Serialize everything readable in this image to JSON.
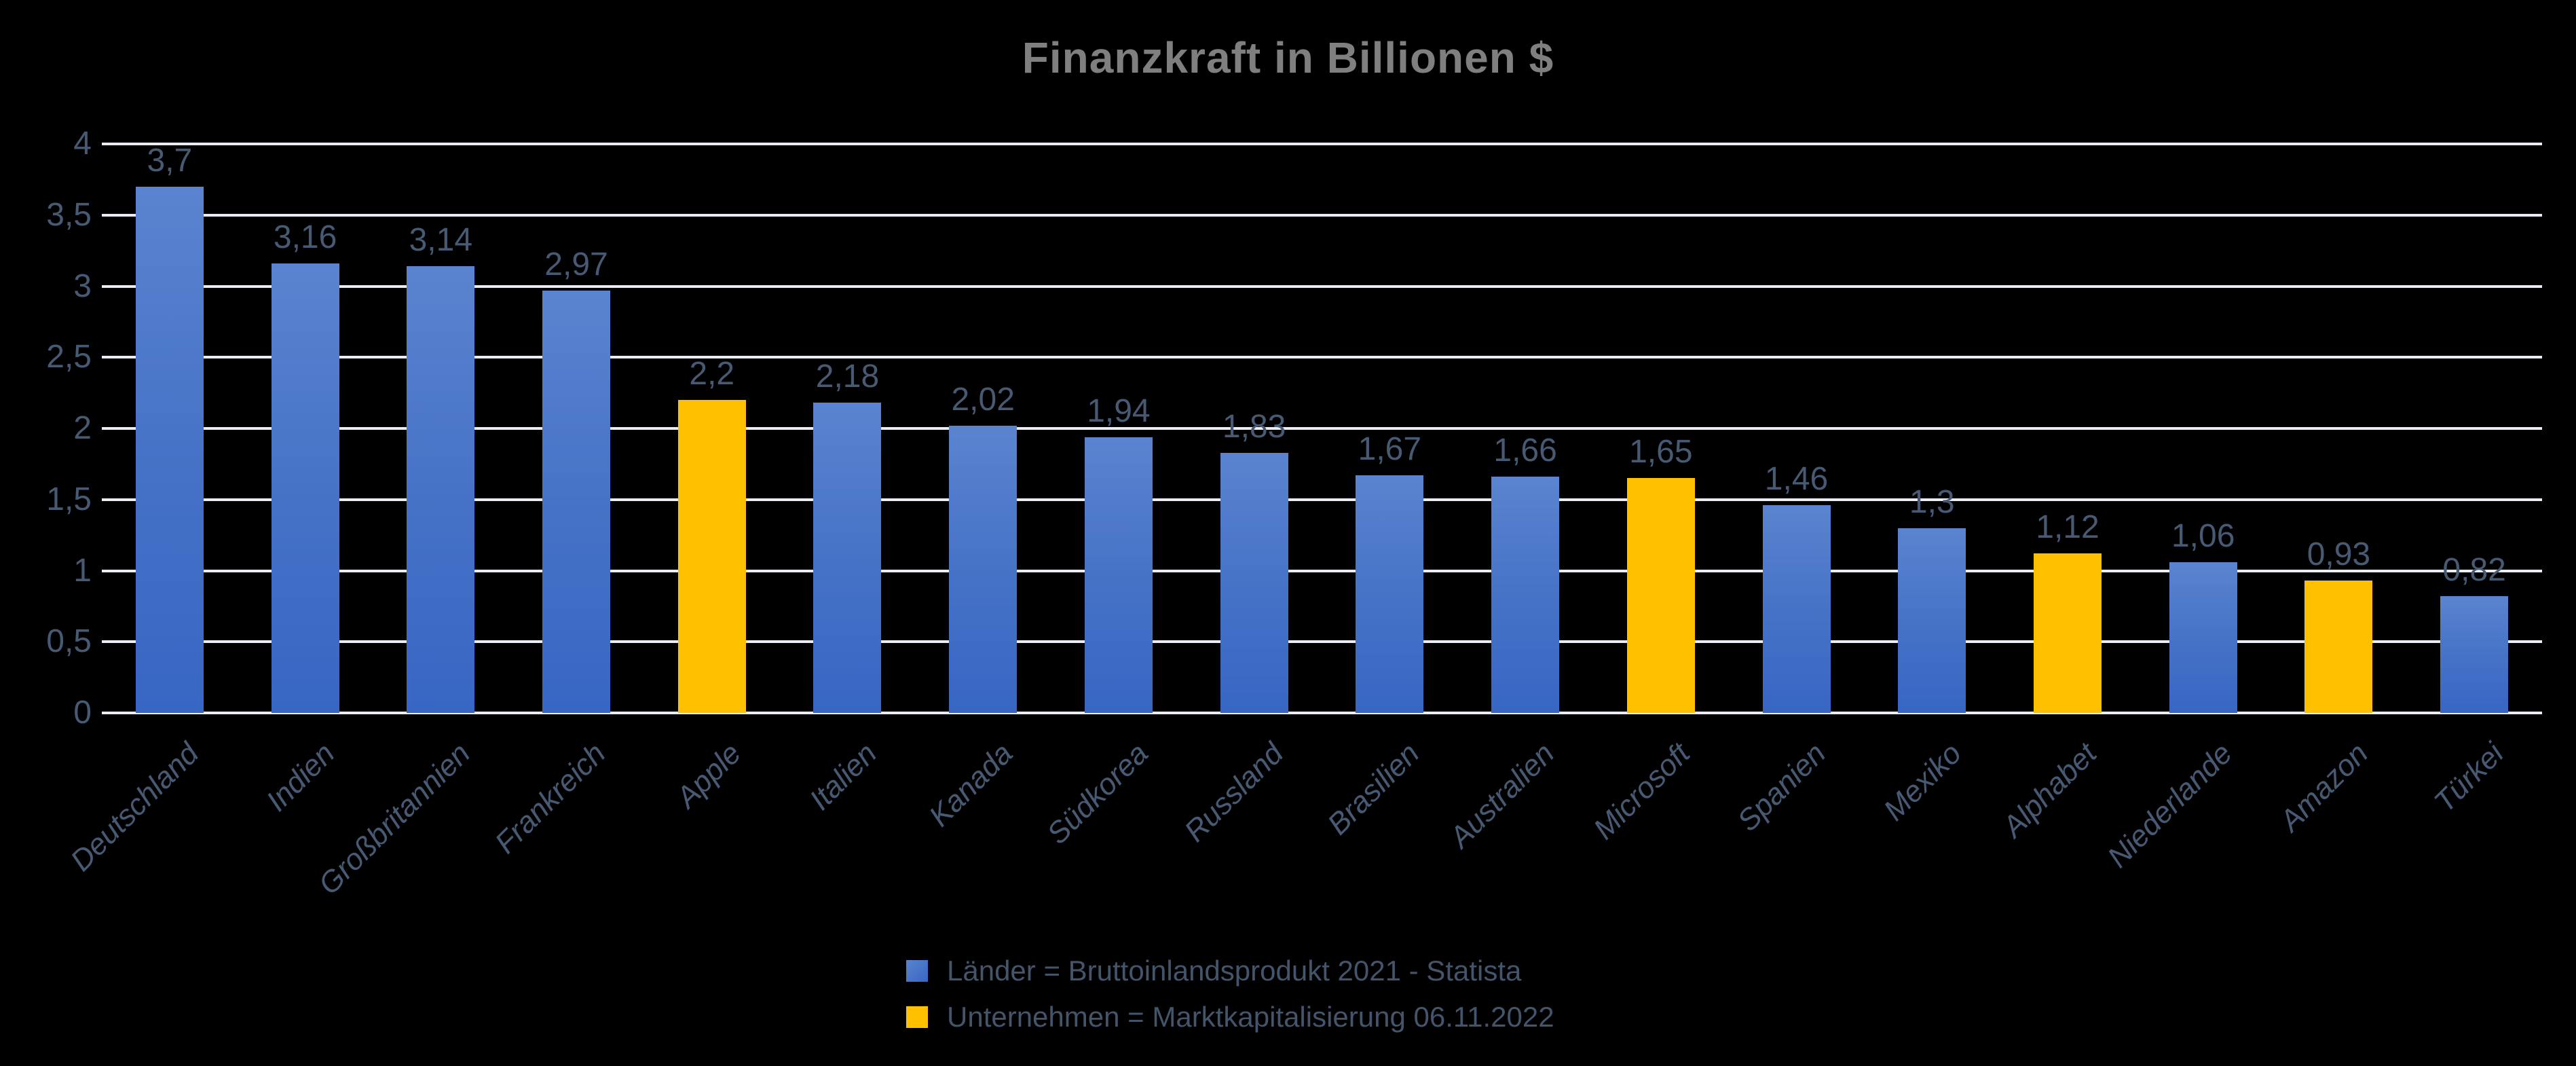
{
  "title": "Finanzkraft in Billionen $",
  "colors": {
    "background": "#000000",
    "title_text": "#7F7F7F",
    "axis_text": "#485A73",
    "legend_text": "#44546A",
    "gridline": "#E9EDF3",
    "country_bar_top": "#5A84CF",
    "country_bar_bottom": "#3766C4",
    "company_bar": "#FFC000"
  },
  "chart_data": {
    "type": "bar",
    "title": "Finanzkraft in Billionen $",
    "xlabel": "",
    "ylabel": "",
    "ylim": [
      0,
      4
    ],
    "ytick_step": 0.5,
    "grid": true,
    "legend_position": "bottom",
    "decimal_separator": ",",
    "yticks": [
      "0",
      "0,5",
      "1",
      "1,5",
      "2",
      "2,5",
      "3",
      "3,5",
      "4"
    ],
    "items": [
      {
        "label": "Deutschland",
        "value": 3.7,
        "display": "3,7",
        "series": "country"
      },
      {
        "label": "Indien",
        "value": 3.16,
        "display": "3,16",
        "series": "country"
      },
      {
        "label": "Großbritannien",
        "value": 3.14,
        "display": "3,14",
        "series": "country"
      },
      {
        "label": "Frankreich",
        "value": 2.97,
        "display": "2,97",
        "series": "country"
      },
      {
        "label": "Apple",
        "value": 2.2,
        "display": "2,2",
        "series": "company"
      },
      {
        "label": "Italien",
        "value": 2.18,
        "display": "2,18",
        "series": "country"
      },
      {
        "label": "Kanada",
        "value": 2.02,
        "display": "2,02",
        "series": "country"
      },
      {
        "label": "Südkorea",
        "value": 1.94,
        "display": "1,94",
        "series": "country"
      },
      {
        "label": "Russland",
        "value": 1.83,
        "display": "1,83",
        "series": "country"
      },
      {
        "label": "Brasilien",
        "value": 1.67,
        "display": "1,67",
        "series": "country"
      },
      {
        "label": "Australien",
        "value": 1.66,
        "display": "1,66",
        "series": "country"
      },
      {
        "label": "Microsoft",
        "value": 1.65,
        "display": "1,65",
        "series": "company"
      },
      {
        "label": "Spanien",
        "value": 1.46,
        "display": "1,46",
        "series": "country"
      },
      {
        "label": "Mexiko",
        "value": 1.3,
        "display": "1,3",
        "series": "country"
      },
      {
        "label": "Alphabet",
        "value": 1.12,
        "display": "1,12",
        "series": "company"
      },
      {
        "label": "Niederlande",
        "value": 1.06,
        "display": "1,06",
        "series": "country"
      },
      {
        "label": "Amazon",
        "value": 0.93,
        "display": "0,93",
        "series": "company"
      },
      {
        "label": "Türkei",
        "value": 0.82,
        "display": "0,82",
        "series": "country"
      }
    ]
  },
  "legend": {
    "entries": [
      {
        "label": "Länder = Bruttoinlandsprodukt 2021 - Statista",
        "series": "country"
      },
      {
        "label": "Unternehmen = Marktkapitalisierung 06.11.2022",
        "series": "company"
      }
    ]
  }
}
